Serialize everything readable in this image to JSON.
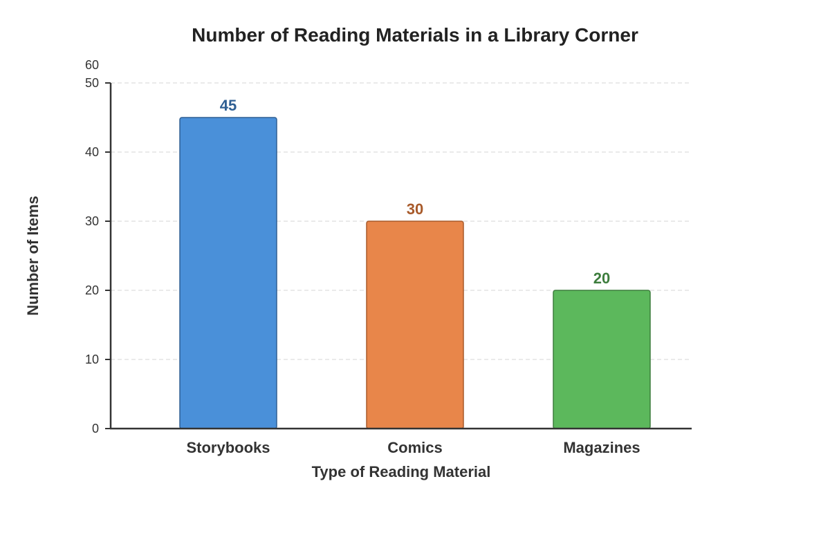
{
  "chart_data": {
    "type": "bar",
    "title": "Number of Reading Materials in a Library Corner",
    "xlabel": "Type of Reading Material",
    "ylabel": "Number of Items",
    "categories": [
      "Storybooks",
      "Comics",
      "Magazines"
    ],
    "values": [
      45,
      30,
      20
    ],
    "ylim": [
      0,
      60
    ],
    "yticks": [
      0,
      10,
      20,
      30,
      40,
      50,
      60
    ],
    "grid": true,
    "legend": "none",
    "colors": {
      "fill": [
        "#4a90d9",
        "#e8864a",
        "#5cb85c"
      ],
      "stroke": [
        "#2f5f93",
        "#a85a2a",
        "#3d7d3d"
      ],
      "value_label": [
        "#2f5f93",
        "#a85a2a",
        "#3d7d3d"
      ]
    }
  }
}
